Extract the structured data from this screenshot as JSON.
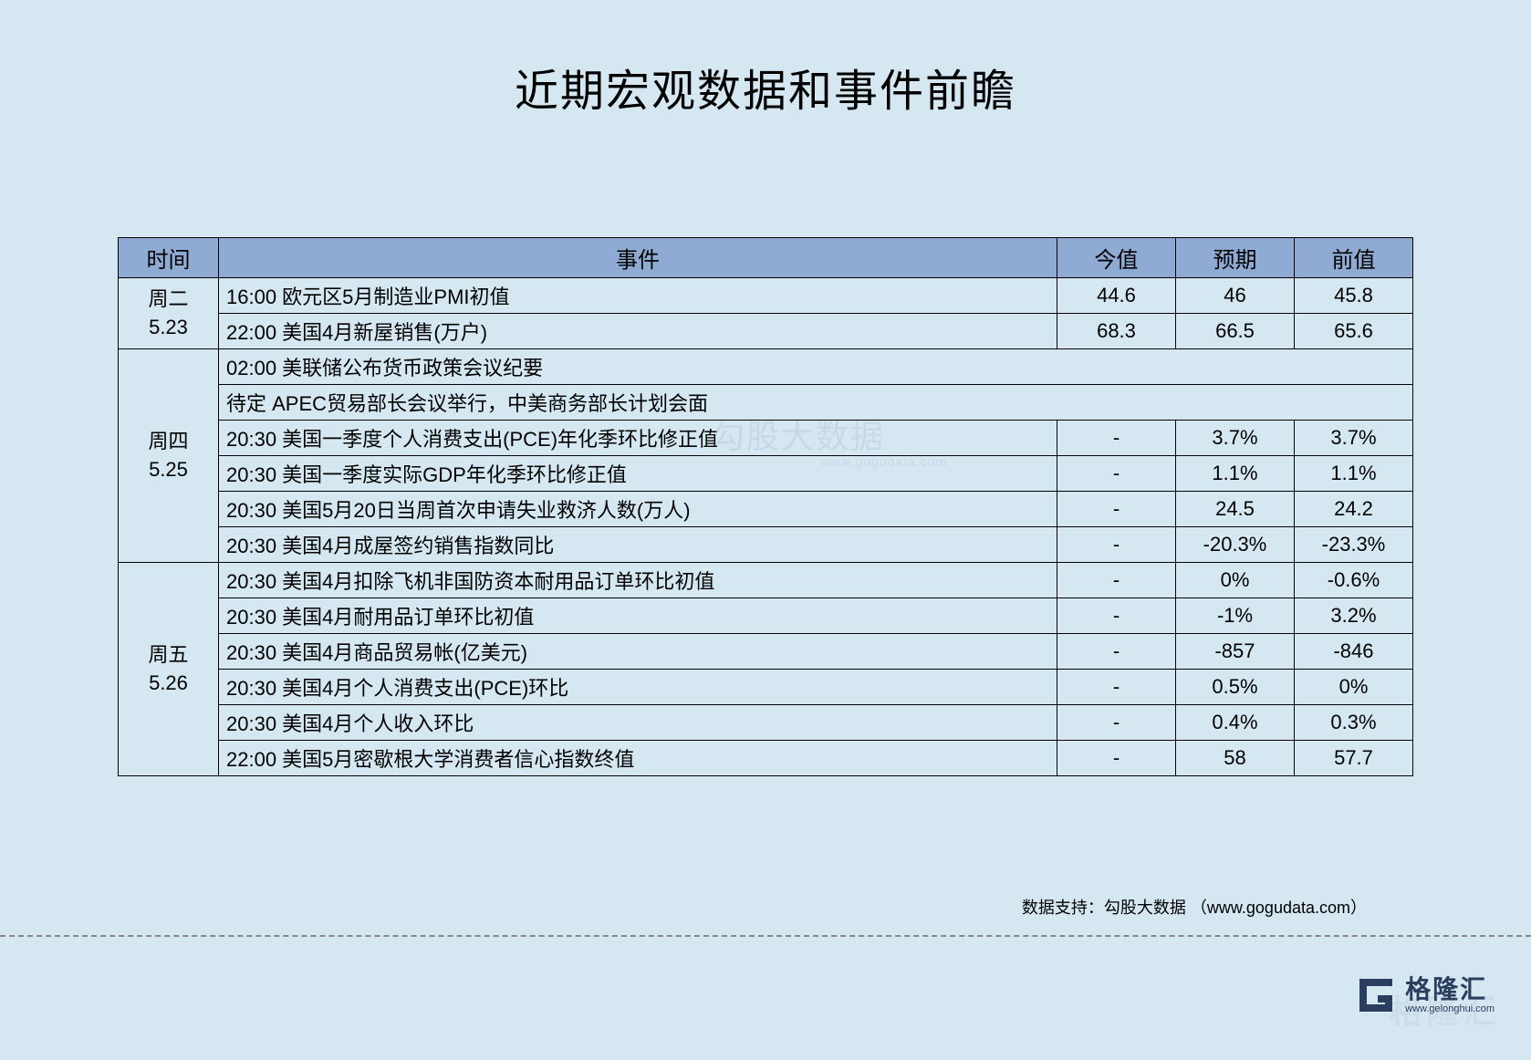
{
  "title": "近期宏观数据和事件前瞻",
  "columns": [
    "时间",
    "事件",
    "今值",
    "预期",
    "前值"
  ],
  "col_widths": [
    "110px",
    "auto",
    "130px",
    "130px",
    "130px"
  ],
  "header_bg": "#8fabd4",
  "page_bg": "#d5e8f2",
  "border_color": "#000000",
  "watermark_text": "勾股大数据",
  "watermark_url": "www.gogudata.com",
  "groups": [
    {
      "time_lines": [
        "周二",
        "5.23"
      ],
      "rows": [
        {
          "event": "16:00 欧元区5月制造业PMI初值",
          "today": "44.6",
          "expect": "46",
          "prev": "45.8"
        },
        {
          "event": "22:00 美国4月新屋销售(万户)",
          "today": "68.3",
          "expect": "66.5",
          "prev": "65.6"
        }
      ]
    },
    {
      "time_lines": [
        "周四",
        "5.25"
      ],
      "rows": [
        {
          "event": "02:00 美联储公布货币政策会议纪要",
          "full_span": true
        },
        {
          "event": "待定 APEC贸易部长会议举行，中美商务部长计划会面",
          "full_span": true
        },
        {
          "event": "20:30 美国一季度个人消费支出(PCE)年化季环比修正值",
          "today": "-",
          "expect": "3.7%",
          "prev": "3.7%"
        },
        {
          "event": "20:30 美国一季度实际GDP年化季环比修正值",
          "today": "-",
          "expect": "1.1%",
          "prev": "1.1%"
        },
        {
          "event": "20:30 美国5月20日当周首次申请失业救济人数(万人)",
          "today": "-",
          "expect": "24.5",
          "prev": "24.2"
        },
        {
          "event": "20:30 美国4月成屋签约销售指数同比",
          "today": "-",
          "expect": "-20.3%",
          "prev": "-23.3%"
        }
      ]
    },
    {
      "time_lines": [
        "周五",
        "5.26"
      ],
      "rows": [
        {
          "event": "20:30 美国4月扣除飞机非国防资本耐用品订单环比初值",
          "today": "-",
          "expect": "0%",
          "prev": "-0.6%"
        },
        {
          "event": "20:30 美国4月耐用品订单环比初值",
          "today": "-",
          "expect": "-1%",
          "prev": "3.2%"
        },
        {
          "event": "20:30 美国4月商品贸易帐(亿美元)",
          "today": "-",
          "expect": "-857",
          "prev": "-846"
        },
        {
          "event": "20:30 美国4月个人消费支出(PCE)环比",
          "today": "-",
          "expect": "0.5%",
          "prev": "0%"
        },
        {
          "event": "20:30 美国4月个人收入环比",
          "today": "-",
          "expect": "0.4%",
          "prev": "0.3%"
        },
        {
          "event": "22:00 美国5月密歇根大学消费者信心指数终值",
          "today": "-",
          "expect": "58",
          "prev": "57.7"
        }
      ]
    }
  ],
  "footer_credit": "数据支持：勾股大数据 （www.gogudata.com）",
  "logo": {
    "cn": "格隆汇",
    "url": "www.gelonghui.com",
    "color": "#2a3f5f"
  }
}
